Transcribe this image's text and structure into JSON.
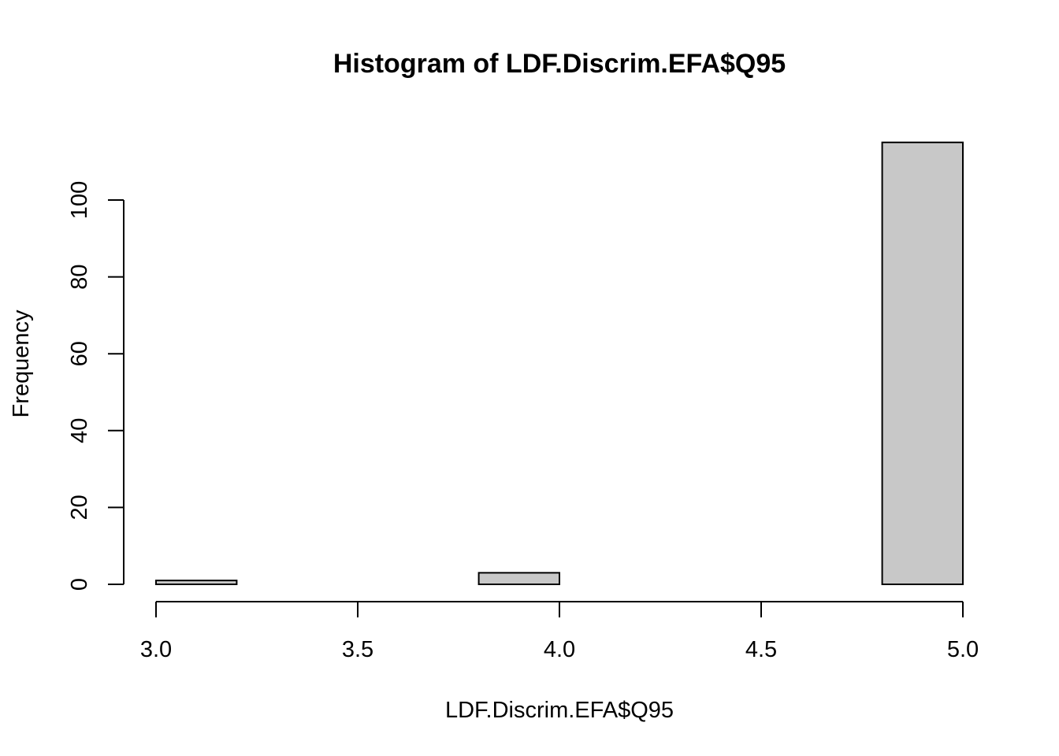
{
  "chart_data": {
    "type": "bar",
    "title": "Histogram of LDF.Discrim.EFA$Q95",
    "xlabel": "LDF.Discrim.EFA$Q95",
    "ylabel": "Frequency",
    "bins": [
      {
        "start": 3.0,
        "end": 3.2,
        "count": 1
      },
      {
        "start": 3.2,
        "end": 3.4,
        "count": 0
      },
      {
        "start": 3.4,
        "end": 3.6,
        "count": 0
      },
      {
        "start": 3.6,
        "end": 3.8,
        "count": 0
      },
      {
        "start": 3.8,
        "end": 4.0,
        "count": 3
      },
      {
        "start": 4.0,
        "end": 4.2,
        "count": 0
      },
      {
        "start": 4.2,
        "end": 4.4,
        "count": 0
      },
      {
        "start": 4.4,
        "end": 4.6,
        "count": 0
      },
      {
        "start": 4.6,
        "end": 4.8,
        "count": 0
      },
      {
        "start": 4.8,
        "end": 5.0,
        "count": 115
      }
    ],
    "xlim": [
      3.0,
      5.0
    ],
    "ylim": [
      0,
      115
    ],
    "x_ticks": [
      "3.0",
      "3.5",
      "4.0",
      "4.5",
      "5.0"
    ],
    "y_ticks": [
      "0",
      "20",
      "40",
      "60",
      "80",
      "100"
    ],
    "grid": false,
    "bar_color": "#c8c8c8"
  }
}
